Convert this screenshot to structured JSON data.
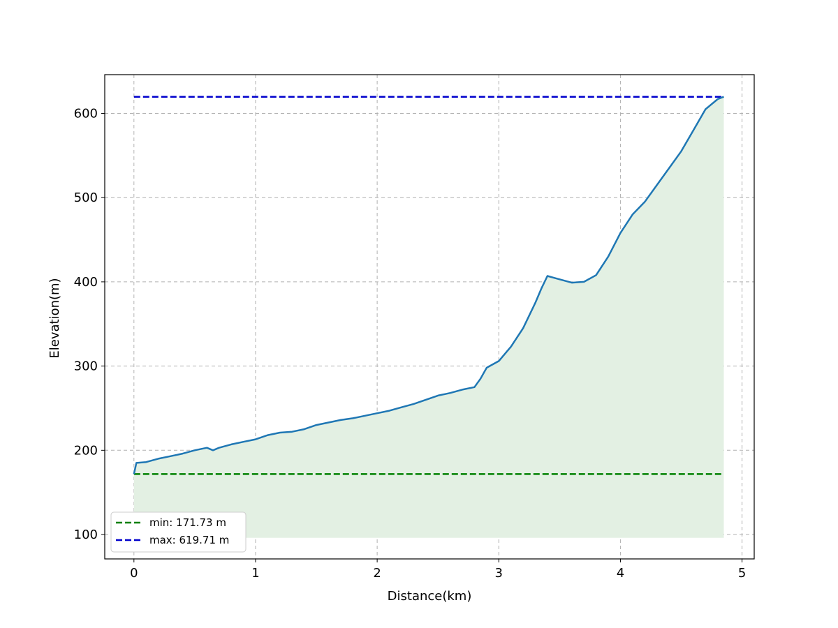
{
  "chart_data": {
    "type": "area",
    "title": "",
    "xlabel": "Distance(km)",
    "ylabel": "Elevation(m)",
    "xlim": [
      -0.24,
      5.1
    ],
    "ylim": [
      71,
      646
    ],
    "xticks": [
      "0",
      "1",
      "2",
      "3",
      "4",
      "5"
    ],
    "yticks": [
      "100",
      "200",
      "300",
      "400",
      "500",
      "600"
    ],
    "grid": true,
    "legend_position": "lower left",
    "fill_baseline": 96,
    "colors": {
      "line": "#1f77b4",
      "fill": "#e3f0e3",
      "min": "#008000",
      "max": "#0000cc",
      "grid": "#b0b0b0"
    },
    "series": [
      {
        "x": [
          0,
          0.02,
          0.1,
          0.2,
          0.3,
          0.4,
          0.5,
          0.6,
          0.65,
          0.7,
          0.8,
          0.9,
          1.0,
          1.1,
          1.2,
          1.3,
          1.4,
          1.5,
          1.6,
          1.7,
          1.8,
          1.9,
          2.0,
          2.1,
          2.2,
          2.3,
          2.4,
          2.5,
          2.6,
          2.7,
          2.8,
          2.85,
          2.9,
          3.0,
          3.1,
          3.2,
          3.3,
          3.35,
          3.4,
          3.45,
          3.5,
          3.6,
          3.7,
          3.8,
          3.9,
          4.0,
          4.1,
          4.2,
          4.3,
          4.4,
          4.5,
          4.6,
          4.7,
          4.8,
          4.85
        ],
        "y": [
          171.73,
          185,
          186,
          190,
          193,
          196,
          200,
          203,
          200,
          203,
          207,
          210,
          213,
          218,
          221,
          222,
          225,
          230,
          233,
          236,
          238,
          241,
          244,
          247,
          251,
          255,
          260,
          265,
          268,
          272,
          275,
          285,
          298,
          306,
          323,
          345,
          375,
          392,
          407,
          405,
          403,
          399,
          400,
          408,
          430,
          458,
          480,
          495,
          515,
          535,
          555,
          580,
          605,
          617,
          619.71
        ]
      }
    ],
    "reference_lines": [
      {
        "name": "min: 171.73 m",
        "y": 171.73,
        "style": "dashed",
        "color": "#008000"
      },
      {
        "name": "max: 619.71 m",
        "y": 619.71,
        "style": "dashed",
        "color": "#0000cc"
      }
    ]
  }
}
